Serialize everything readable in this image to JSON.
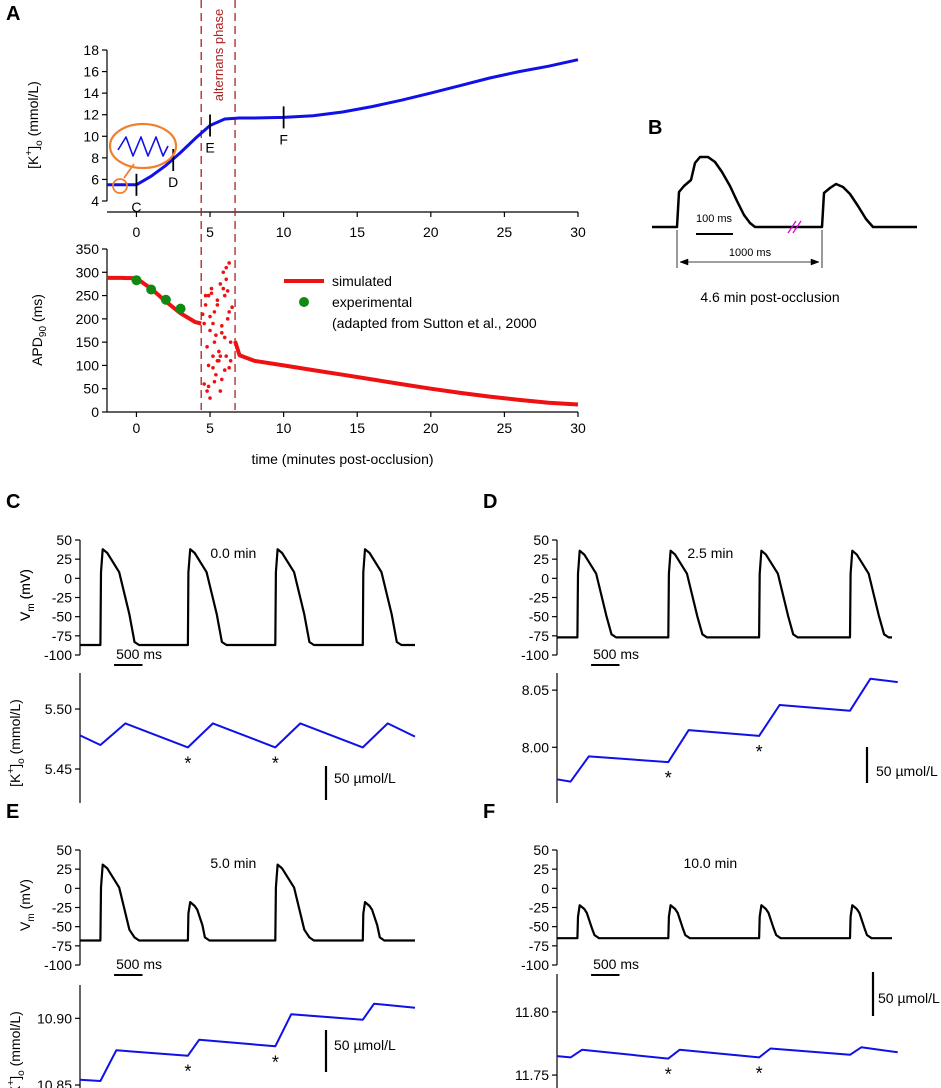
{
  "colors": {
    "blue": "#1010e8",
    "red": "#ee1111",
    "green": "#118811",
    "black": "#000000",
    "orange": "#f08030",
    "darkred": "#aa2222",
    "magenta": "#dd00dd"
  },
  "panel_letters": {
    "a": "A",
    "b": "B",
    "c": "C",
    "d": "D",
    "e": "E",
    "f": "F"
  },
  "chart_data": [
    {
      "id": "A-top",
      "type": "line",
      "ylabel": "[K+]o (mmol/L)",
      "ylabel_parts": {
        "main": "[K",
        "sup": "+",
        "close": "]",
        "sub": "o",
        "unit": " (mmol/L)"
      },
      "ylim": [
        4,
        18
      ],
      "xlim": [
        -2,
        30
      ],
      "yticks": [
        4,
        6,
        8,
        10,
        12,
        14,
        16,
        18
      ],
      "xticks": [
        0,
        5,
        10,
        15,
        20,
        25,
        30
      ],
      "series": [
        {
          "name": "[K+]o",
          "color": "#1010e8",
          "x": [
            -2,
            -1,
            0,
            1,
            2,
            3,
            4,
            5,
            6,
            7,
            8,
            10,
            12,
            14,
            16,
            18,
            20,
            22,
            24,
            26,
            28,
            30
          ],
          "y": [
            5.5,
            5.5,
            5.5,
            6.3,
            7.3,
            8.5,
            9.8,
            11.0,
            11.6,
            11.7,
            11.7,
            11.75,
            11.9,
            12.25,
            12.75,
            13.35,
            14.0,
            14.7,
            15.4,
            16.0,
            16.5,
            17.1
          ]
        }
      ],
      "markers": [
        {
          "label": "C",
          "x": 0,
          "y": 5.5
        },
        {
          "label": "D",
          "x": 2.5,
          "y": 7.8
        },
        {
          "label": "E",
          "x": 5,
          "y": 11.0
        },
        {
          "label": "F",
          "x": 10,
          "y": 11.75
        }
      ],
      "phase": {
        "label": "alternans phase",
        "x_start": 4.4,
        "x_end": 6.7
      }
    },
    {
      "id": "A-bottom",
      "type": "scatter",
      "ylabel": "APD90 (ms)",
      "ylabel_parts": {
        "main": "APD",
        "sub": "90",
        "unit": " (ms)"
      },
      "xlabel": "time (minutes post-occlusion)",
      "ylim": [
        0,
        350
      ],
      "xlim": [
        -2,
        30
      ],
      "yticks": [
        0,
        50,
        100,
        150,
        200,
        250,
        300,
        350
      ],
      "xticks": [
        0,
        5,
        10,
        15,
        20,
        25,
        30
      ],
      "series": [
        {
          "name": "simulated",
          "color": "#ee1111",
          "x": [
            -2,
            -1,
            0,
            1,
            2,
            3,
            4,
            4.4,
            6.7,
            7,
            8,
            10,
            12,
            14,
            16,
            18,
            20,
            22,
            24,
            26,
            28,
            30
          ],
          "y": [
            288,
            288,
            287,
            265,
            237,
            212,
            193,
            190,
            152,
            122,
            110,
            100,
            90,
            80,
            70,
            60,
            50,
            41,
            33,
            26,
            20,
            16
          ]
        },
        {
          "name": "experimental",
          "color": "#118811",
          "x": [
            0,
            1,
            2,
            3
          ],
          "y": [
            283,
            263,
            241,
            222
          ]
        }
      ],
      "alternans_points": {
        "x": [
          4.5,
          4.6,
          4.7,
          4.8,
          4.9,
          5.0,
          5.0,
          5.1,
          5.2,
          5.3,
          5.4,
          5.5,
          5.6,
          5.7,
          5.8,
          5.9,
          6.0,
          6.1,
          6.2,
          6.3,
          6.4,
          6.5,
          4.6,
          4.8,
          5.0,
          5.2,
          5.4,
          5.6,
          5.8,
          6.0,
          6.2,
          6.4,
          4.7,
          4.9,
          5.1,
          5.3,
          5.5,
          5.7,
          5.9,
          6.1,
          6.3,
          5.2,
          5.5,
          5.8,
          6.1,
          6.3,
          4.9,
          5.3,
          5.7,
          6.0
        ],
        "y": [
          210,
          60,
          230,
          45,
          250,
          30,
          205,
          255,
          95,
          215,
          80,
          240,
          130,
          275,
          70,
          300,
          160,
          310,
          200,
          320,
          150,
          225,
          190,
          140,
          175,
          120,
          165,
          110,
          185,
          90,
          260,
          110,
          250,
          55,
          265,
          65,
          230,
          45,
          265,
          120,
          95,
          190,
          110,
          170,
          285,
          215,
          100,
          150,
          120,
          250
        ]
      },
      "legend": {
        "simulated": "simulated",
        "experimental": "experimental",
        "note": "(adapted from Sutton et al., 2000"
      }
    },
    {
      "id": "B",
      "type": "line",
      "title": "4.6 min post-occlusion",
      "scalebar": "100 ms",
      "cycle": "1000 ms"
    },
    {
      "id": "C",
      "type": "line",
      "title": "0.0 min",
      "vm": {
        "ylabel": "Vm (mV)",
        "ylim": [
          -100,
          50
        ],
        "yticks": [
          50,
          25,
          0,
          -25,
          -50,
          -75,
          -100
        ],
        "rest": -87,
        "beats": [
          {
            "t": 0.18,
            "peak": 38
          },
          {
            "t": 0.95,
            "peak": 38
          },
          {
            "t": 1.72,
            "peak": 38
          },
          {
            "t": 2.49,
            "peak": 38
          }
        ]
      },
      "k": {
        "ylabel": "[K+]o (mmol/L)",
        "yticks": [
          5.45,
          5.5
        ],
        "ylim": [
          5.43,
          5.53
        ],
        "x": [
          0,
          0.18,
          0.4,
          0.95,
          1.17,
          1.72,
          1.94,
          2.49,
          2.71,
          2.95
        ],
        "y": [
          5.478,
          5.47,
          5.488,
          5.468,
          5.488,
          5.468,
          5.488,
          5.468,
          5.488,
          5.477
        ],
        "stars_x": [
          0.95,
          1.72
        ]
      },
      "time_bar": "500 ms",
      "k_bar": "50 µmol/L"
    },
    {
      "id": "D",
      "type": "line",
      "title": "2.5 min",
      "vm": {
        "ylabel": "Vm (mV)",
        "ylim": [
          -100,
          50
        ],
        "yticks": [
          50,
          25,
          0,
          -25,
          -50,
          -75,
          -100
        ],
        "rest": -77,
        "beats": [
          {
            "t": 0.18,
            "peak": 36
          },
          {
            "t": 0.98,
            "peak": 36
          },
          {
            "t": 1.78,
            "peak": 36
          },
          {
            "t": 2.58,
            "peak": 36
          }
        ]
      },
      "k": {
        "ylabel": "",
        "yticks": [
          8.0,
          8.05
        ],
        "ylim": [
          7.96,
          8.065
        ],
        "x": [
          0,
          0.12,
          0.28,
          0.98,
          1.16,
          1.78,
          1.96,
          2.58,
          2.76,
          3.0
        ],
        "y": [
          7.972,
          7.97,
          7.992,
          7.987,
          8.015,
          8.01,
          8.037,
          8.032,
          8.06,
          8.057
        ],
        "stars_x": [
          0.98,
          1.78
        ]
      },
      "time_bar": "500 ms",
      "k_bar": "50 µmol/L"
    },
    {
      "id": "E",
      "type": "line",
      "title": "5.0 min",
      "vm": {
        "ylabel": "Vm (mV)",
        "ylim": [
          -100,
          50
        ],
        "yticks": [
          50,
          25,
          0,
          -25,
          -50,
          -75,
          -100
        ],
        "rest": -68,
        "beats": [
          {
            "t": 0.18,
            "peak": 31
          },
          {
            "t": 0.95,
            "peak": -18
          },
          {
            "t": 1.72,
            "peak": 31
          },
          {
            "t": 2.49,
            "peak": -18
          }
        ]
      },
      "k": {
        "ylabel": "[K+]o (mmol/L)",
        "yticks": [
          10.85,
          10.9
        ],
        "ylim": [
          10.835,
          10.925
        ],
        "x": [
          0,
          0.18,
          0.32,
          0.95,
          1.05,
          1.72,
          1.86,
          2.49,
          2.59,
          2.95
        ],
        "y": [
          10.854,
          10.853,
          10.876,
          10.872,
          10.884,
          10.879,
          10.903,
          10.899,
          10.911,
          10.908
        ],
        "stars_x": [
          0.95,
          1.72
        ]
      },
      "time_bar": "500 ms",
      "k_bar": "50 µmol/L"
    },
    {
      "id": "F",
      "type": "line",
      "title": "10.0 min",
      "vm": {
        "ylabel": "",
        "ylim": [
          -100,
          50
        ],
        "yticks": [
          50,
          25,
          0,
          -25,
          -50,
          -75,
          -100
        ],
        "rest": -65,
        "beats": [
          {
            "t": 0.18,
            "peak": -22
          },
          {
            "t": 0.98,
            "peak": -22
          },
          {
            "t": 1.78,
            "peak": -22
          },
          {
            "t": 2.58,
            "peak": -22
          }
        ]
      },
      "k": {
        "ylabel": "",
        "yticks": [
          11.75,
          11.8
        ],
        "ylim": [
          11.735,
          11.83
        ],
        "x": [
          0,
          0.12,
          0.22,
          0.98,
          1.08,
          1.78,
          1.88,
          2.58,
          2.68,
          3.0
        ],
        "y": [
          11.765,
          11.764,
          11.77,
          11.763,
          11.77,
          11.764,
          11.771,
          11.766,
          11.772,
          11.768
        ],
        "stars_x": [
          0.98,
          1.78
        ]
      },
      "time_bar": "500 ms",
      "k_bar": "50 µmol/L"
    }
  ]
}
